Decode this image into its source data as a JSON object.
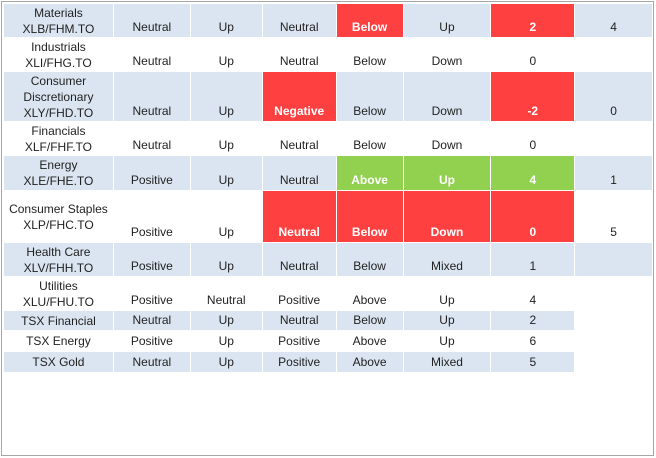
{
  "rows": [
    {
      "sector": "Materials",
      "ticker": "XLB/FHM.TO",
      "c1": "Neutral",
      "c2": "Up",
      "c3": "Neutral",
      "c4": "Below",
      "c5": "Up",
      "c6": "2",
      "c7": "4"
    },
    {
      "sector": "Industrials",
      "ticker": "XLI/FHG.TO",
      "c1": "Neutral",
      "c2": "Up",
      "c3": "Neutral",
      "c4": "Below",
      "c5": "Down",
      "c6": "0",
      "c7": ""
    },
    {
      "sector": "Consumer Discretionary",
      "ticker": "XLY/FHD.TO",
      "c1": "Neutral",
      "c2": "Up",
      "c3": "Negative",
      "c4": "Below",
      "c5": "Down",
      "c6": "-2",
      "c7": "0"
    },
    {
      "sector": "Financials",
      "ticker": "XLF/FHF.TO",
      "c1": "Neutral",
      "c2": "Up",
      "c3": "Neutral",
      "c4": "Below",
      "c5": "Down",
      "c6": "0",
      "c7": ""
    },
    {
      "sector": "Energy",
      "ticker": "XLE/FHE.TO",
      "c1": "Positive",
      "c2": "Up",
      "c3": "Neutral",
      "c4": "Above",
      "c5": "Up",
      "c6": "4",
      "c7": "1"
    },
    {
      "sector": "Consumer Staples",
      "ticker": "XLP/FHC.TO",
      "c1": "Positive",
      "c2": "Up",
      "c3": "Neutral",
      "c4": "Below",
      "c5": "Down",
      "c6": "0",
      "c7": "5"
    },
    {
      "sector": "Health Care",
      "ticker": "XLV/FHH.TO",
      "c1": "Positive",
      "c2": "Up",
      "c3": "Neutral",
      "c4": "Below",
      "c5": "Mixed",
      "c6": "1",
      "c7": ""
    },
    {
      "sector": "Utilities",
      "ticker": "XLU/FHU.TO",
      "c1": "Positive",
      "c2": "Neutral",
      "c3": "Positive",
      "c4": "Above",
      "c5": "Up",
      "c6": "4",
      "c7": ""
    },
    {
      "sector": "TSX Financial",
      "ticker": "",
      "c1": "Neutral",
      "c2": "Up",
      "c3": "Neutral",
      "c4": "Below",
      "c5": "Up",
      "c6": "2",
      "c7": ""
    },
    {
      "sector": "TSX Energy",
      "ticker": "",
      "c1": "Positive",
      "c2": "Up",
      "c3": "Positive",
      "c4": "Above",
      "c5": "Up",
      "c6": "6",
      "c7": ""
    },
    {
      "sector": "TSX Gold",
      "ticker": "",
      "c1": "Neutral",
      "c2": "Up",
      "c3": "Positive",
      "c4": "Above",
      "c5": "Mixed",
      "c6": "5",
      "c7": ""
    }
  ],
  "colors": {
    "band": "#dbe5f1",
    "negative": "#ff4040",
    "positive": "#92d050",
    "text": "#1f1f1f"
  }
}
